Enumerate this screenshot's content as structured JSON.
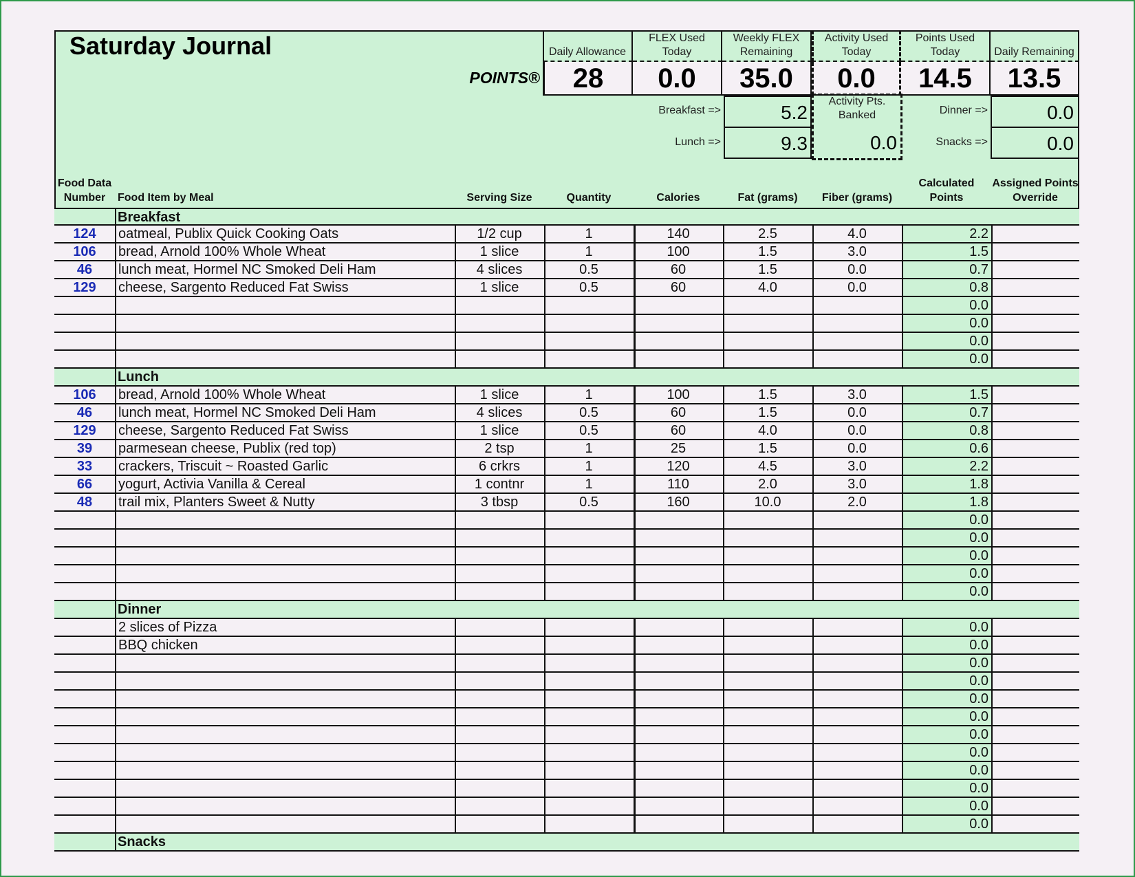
{
  "title": "Saturday Journal",
  "points_label": "POINTS®",
  "summary": [
    {
      "label": "Daily Allowance",
      "value": "28"
    },
    {
      "label": "FLEX Used Today",
      "value": "0.0"
    },
    {
      "label": "Weekly FLEX Remaining",
      "value": "35.0"
    },
    {
      "label": "Activity Used Today",
      "value": "0.0"
    },
    {
      "label": "Points Used Today",
      "value": "14.5"
    },
    {
      "label": "Daily Remaining",
      "value": "13.5"
    }
  ],
  "meal_totals": {
    "breakfast_label": "Breakfast =>",
    "breakfast": "5.2",
    "lunch_label": "Lunch =>",
    "lunch": "9.3",
    "dinner_label": "Dinner =>",
    "dinner": "0.0",
    "snacks_label": "Snacks =>",
    "snacks": "0.0",
    "activity_banked_label": "Activity Pts. Banked",
    "activity_banked": "0.0"
  },
  "columns": [
    "Food Data Number",
    "Food Item by Meal",
    "Serving Size",
    "Quantity",
    "Calories",
    "Fat (grams)",
    "Fiber (grams)",
    "Calculated Points",
    "Assigned Points Override"
  ],
  "sections": [
    {
      "name": "Breakfast",
      "rows": [
        [
          "124",
          "oatmeal, Publix Quick Cooking Oats",
          "1/2 cup",
          "1",
          "140",
          "2.5",
          "4.0",
          "2.2",
          ""
        ],
        [
          "106",
          "bread, Arnold 100% Whole Wheat",
          "1 slice",
          "1",
          "100",
          "1.5",
          "3.0",
          "1.5",
          ""
        ],
        [
          "46",
          "lunch meat, Hormel NC Smoked Deli Ham",
          "4 slices",
          "0.5",
          "60",
          "1.5",
          "0.0",
          "0.7",
          ""
        ],
        [
          "129",
          "cheese, Sargento Reduced Fat Swiss",
          "1 slice",
          "0.5",
          "60",
          "4.0",
          "0.0",
          "0.8",
          ""
        ],
        [
          "",
          "",
          "",
          "",
          "",
          "",
          "",
          "0.0",
          ""
        ],
        [
          "",
          "",
          "",
          "",
          "",
          "",
          "",
          "0.0",
          ""
        ],
        [
          "",
          "",
          "",
          "",
          "",
          "",
          "",
          "0.0",
          ""
        ],
        [
          "",
          "",
          "",
          "",
          "",
          "",
          "",
          "0.0",
          ""
        ]
      ]
    },
    {
      "name": "Lunch",
      "rows": [
        [
          "106",
          "bread, Arnold 100% Whole Wheat",
          "1 slice",
          "1",
          "100",
          "1.5",
          "3.0",
          "1.5",
          ""
        ],
        [
          "46",
          "lunch meat, Hormel NC Smoked Deli Ham",
          "4 slices",
          "0.5",
          "60",
          "1.5",
          "0.0",
          "0.7",
          ""
        ],
        [
          "129",
          "cheese, Sargento Reduced Fat Swiss",
          "1 slice",
          "0.5",
          "60",
          "4.0",
          "0.0",
          "0.8",
          ""
        ],
        [
          "39",
          "parmesean cheese, Publix (red top)",
          "2 tsp",
          "1",
          "25",
          "1.5",
          "0.0",
          "0.6",
          ""
        ],
        [
          "33",
          "crackers, Triscuit ~ Roasted Garlic",
          "6 crkrs",
          "1",
          "120",
          "4.5",
          "3.0",
          "2.2",
          ""
        ],
        [
          "66",
          "yogurt, Activia Vanilla & Cereal",
          "1 contnr",
          "1",
          "110",
          "2.0",
          "3.0",
          "1.8",
          ""
        ],
        [
          "48",
          "trail mix, Planters Sweet & Nutty",
          "3 tbsp",
          "0.5",
          "160",
          "10.0",
          "2.0",
          "1.8",
          ""
        ],
        [
          "",
          "",
          "",
          "",
          "",
          "",
          "",
          "0.0",
          ""
        ],
        [
          "",
          "",
          "",
          "",
          "",
          "",
          "",
          "0.0",
          ""
        ],
        [
          "",
          "",
          "",
          "",
          "",
          "",
          "",
          "0.0",
          ""
        ],
        [
          "",
          "",
          "",
          "",
          "",
          "",
          "",
          "0.0",
          ""
        ],
        [
          "",
          "",
          "",
          "",
          "",
          "",
          "",
          "0.0",
          ""
        ]
      ]
    },
    {
      "name": "Dinner",
      "rows": [
        [
          "",
          "2 slices of Pizza",
          "",
          "",
          "",
          "",
          "",
          "0.0",
          ""
        ],
        [
          "",
          "BBQ chicken",
          "",
          "",
          "",
          "",
          "",
          "0.0",
          ""
        ],
        [
          "",
          "",
          "",
          "",
          "",
          "",
          "",
          "0.0",
          ""
        ],
        [
          "",
          "",
          "",
          "",
          "",
          "",
          "",
          "0.0",
          ""
        ],
        [
          "",
          "",
          "",
          "",
          "",
          "",
          "",
          "0.0",
          ""
        ],
        [
          "",
          "",
          "",
          "",
          "",
          "",
          "",
          "0.0",
          ""
        ],
        [
          "",
          "",
          "",
          "",
          "",
          "",
          "",
          "0.0",
          ""
        ],
        [
          "",
          "",
          "",
          "",
          "",
          "",
          "",
          "0.0",
          ""
        ],
        [
          "",
          "",
          "",
          "",
          "",
          "",
          "",
          "0.0",
          ""
        ],
        [
          "",
          "",
          "",
          "",
          "",
          "",
          "",
          "0.0",
          ""
        ],
        [
          "",
          "",
          "",
          "",
          "",
          "",
          "",
          "0.0",
          ""
        ],
        [
          "",
          "",
          "",
          "",
          "",
          "",
          "",
          "0.0",
          ""
        ]
      ]
    },
    {
      "name": "Snacks",
      "rows": []
    }
  ],
  "colors": {
    "accent_green": "#cdf2d6",
    "number_blue": "#1a2bb5",
    "frame_green": "#2e9a4a"
  }
}
